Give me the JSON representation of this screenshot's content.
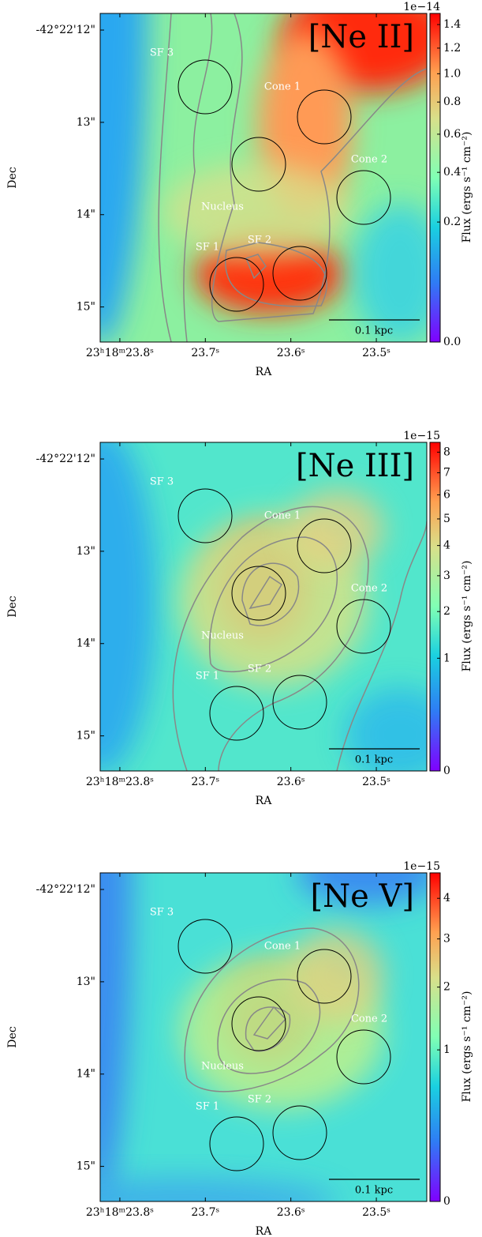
{
  "chart_data": [
    {
      "type": "image",
      "title": "[Ne II]",
      "xlabel": "RA",
      "ylabel": "Dec",
      "scalebar": "0.1 kpc",
      "xlim": [
        23.823,
        23.441
      ],
      "xticks": [
        {
          "value": 23.8,
          "label": "23ʰ18ᵐ23.8ˢ"
        },
        {
          "value": 23.7,
          "label": "23.7ˢ"
        },
        {
          "value": 23.6,
          "label": "23.6ˢ"
        },
        {
          "value": 23.5,
          "label": "23.5ˢ"
        }
      ],
      "ylim": [
        11.82,
        15.38
      ],
      "yticks": [
        {
          "value": 12,
          "label": "-42°22'12\""
        },
        {
          "value": 13,
          "label": "13\""
        },
        {
          "value": 14,
          "label": "14\""
        },
        {
          "value": 15,
          "label": "15\""
        }
      ],
      "regions": [
        "SF 3",
        "Cone 1",
        "Cone 2",
        "Nucleus",
        "SF 1",
        "SF 2"
      ],
      "colorbar": {
        "label": "Flux (ergs s⁻¹ cm⁻²)",
        "offset": "1e−14",
        "scale": "sqrt",
        "clim": [
          0,
          1.5
        ],
        "ticks": [
          {
            "value": 0,
            "label": "0.0"
          },
          0.2,
          0.4,
          0.6,
          0.8,
          {
            "value": 1,
            "label": "1.0"
          },
          1.2,
          1.4
        ]
      }
    },
    {
      "type": "image",
      "title": "[Ne III]",
      "xlabel": "RA",
      "ylabel": "Dec",
      "scalebar": "0.1 kpc",
      "xlim": [
        23.823,
        23.441
      ],
      "xticks": [
        {
          "value": 23.8,
          "label": "23ʰ18ᵐ23.8ˢ"
        },
        {
          "value": 23.7,
          "label": "23.7ˢ"
        },
        {
          "value": 23.6,
          "label": "23.6ˢ"
        },
        {
          "value": 23.5,
          "label": "23.5ˢ"
        }
      ],
      "ylim": [
        11.82,
        15.38
      ],
      "yticks": [
        {
          "value": 12,
          "label": "-42°22'12\""
        },
        {
          "value": 13,
          "label": "13\""
        },
        {
          "value": 14,
          "label": "14\""
        },
        {
          "value": 15,
          "label": "15\""
        }
      ],
      "regions": [
        "SF 3",
        "Cone 1",
        "Cone 2",
        "Nucleus",
        "SF 1",
        "SF 2"
      ],
      "colorbar": {
        "label": "Flux (ergs s⁻¹ cm⁻²)",
        "offset": "1e−15",
        "scale": "sqrt",
        "clim": [
          0,
          8.5
        ],
        "ticks": [
          0,
          1,
          2,
          3,
          4,
          5,
          6,
          7,
          8
        ]
      }
    },
    {
      "type": "image",
      "title": "[Ne V]",
      "xlabel": "RA",
      "ylabel": "Dec",
      "scalebar": "0.1 kpc",
      "xlim": [
        23.823,
        23.441
      ],
      "xticks": [
        {
          "value": 23.8,
          "label": "23ʰ18ᵐ23.8ˢ"
        },
        {
          "value": 23.7,
          "label": "23.7ˢ"
        },
        {
          "value": 23.6,
          "label": "23.6ˢ"
        },
        {
          "value": 23.5,
          "label": "23.5ˢ"
        }
      ],
      "ylim": [
        11.82,
        15.38
      ],
      "yticks": [
        {
          "value": 12,
          "label": "-42°22'12\""
        },
        {
          "value": 13,
          "label": "13\""
        },
        {
          "value": 14,
          "label": "14\""
        },
        {
          "value": 15,
          "label": "15\""
        }
      ],
      "regions": [
        "SF 3",
        "Cone 1",
        "Cone 2",
        "Nucleus",
        "SF 1",
        "SF 2"
      ],
      "colorbar": {
        "label": "Flux (ergs s⁻¹ cm⁻²)",
        "offset": "1e−15",
        "scale": "sqrt",
        "clim": [
          0,
          4.7
        ],
        "ticks": [
          0,
          1,
          2,
          3,
          4
        ]
      }
    }
  ]
}
